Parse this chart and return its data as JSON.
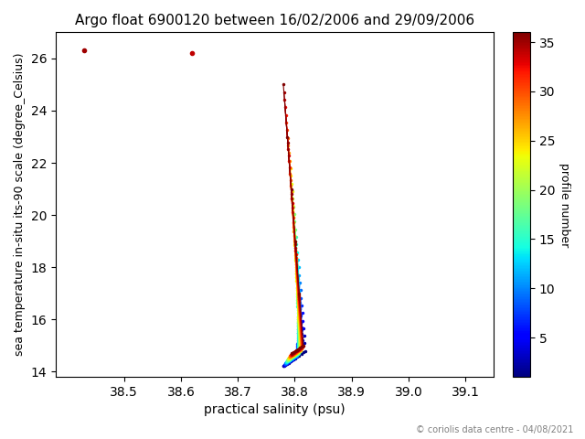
{
  "title": "Argo float 6900120 between 16/02/2006 and 29/09/2006",
  "xlabel": "practical salinity (psu)",
  "ylabel": "sea temperature in-situ its-90 scale (degree_Celsius)",
  "colorbar_label": "profile number",
  "footer": "© coriolis data centre - 04/08/2021",
  "xlim": [
    38.38,
    39.15
  ],
  "ylim": [
    13.8,
    27.0
  ],
  "colorbar_min": 1,
  "colorbar_max": 36,
  "colorbar_ticks": [
    5,
    10,
    15,
    20,
    25,
    30,
    35
  ],
  "background_color": "#ffffff",
  "xticks": [
    38.5,
    38.6,
    38.7,
    38.8,
    38.9,
    39.0,
    39.1
  ],
  "outliers": [
    {
      "sal": 38.43,
      "temp": 26.3,
      "num": 35
    },
    {
      "sal": 38.62,
      "temp": 26.2,
      "num": 34
    }
  ]
}
